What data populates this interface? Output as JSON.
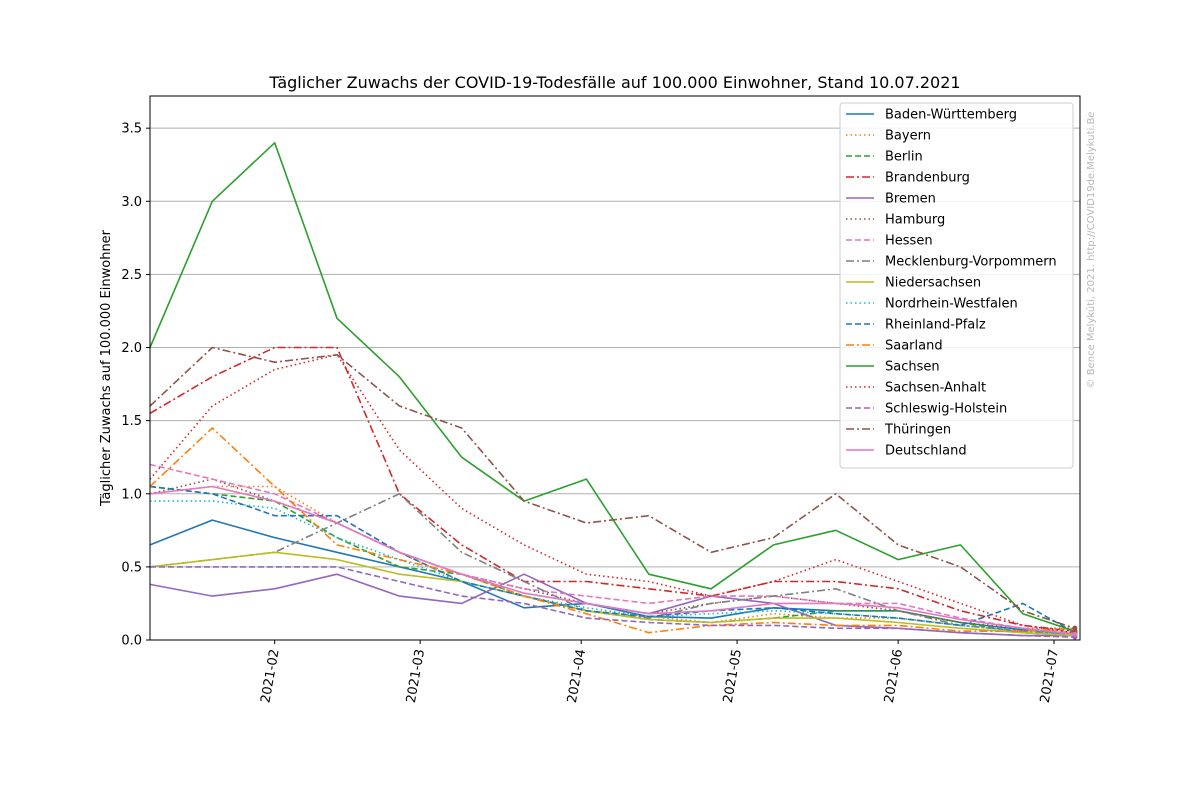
{
  "chart_data": {
    "type": "line",
    "title": "Täglicher Zuwachs der COVID-19-Todesfälle auf 100.000 Einwohner, Stand 10.07.2021",
    "xlabel": "",
    "ylabel": "Täglicher Zuwachs auf 100.000 Einwohner",
    "x_ticks": [
      "2021-02",
      "2021-03",
      "2021-04",
      "2021-05",
      "2021-06",
      "2021-07"
    ],
    "y_ticks": [
      "0.0",
      "0.5",
      "1.0",
      "1.5",
      "2.0",
      "2.5",
      "3.0",
      "3.5"
    ],
    "ylim": [
      0,
      3.72
    ],
    "xlim_days": [
      0,
      179
    ],
    "x_start_date": "2021-01-08",
    "grid": "horizontal",
    "legend_position": "top-right",
    "watermark": "© Bence Melykúti, 2021. http://COVID19de.Melykuti.Be",
    "x_days": [
      0,
      12,
      24,
      36,
      48,
      60,
      72,
      84,
      96,
      108,
      120,
      132,
      144,
      156,
      168,
      178
    ],
    "series": [
      {
        "name": "Baden-Württemberg",
        "color": "#1f77b4",
        "dash": "solid",
        "values": [
          0.65,
          0.82,
          0.7,
          0.6,
          0.5,
          0.4,
          0.22,
          0.25,
          0.16,
          0.15,
          0.22,
          0.2,
          0.2,
          0.12,
          0.07,
          0.04
        ]
      },
      {
        "name": "Bayern",
        "color": "#ff7f0e",
        "dash": "dotted",
        "values": [
          1.0,
          1.05,
          1.05,
          0.8,
          0.6,
          0.4,
          0.3,
          0.2,
          0.16,
          0.12,
          0.18,
          0.15,
          0.15,
          0.1,
          0.06,
          0.05
        ]
      },
      {
        "name": "Berlin",
        "color": "#2ca02c",
        "dash": "dashed",
        "values": [
          1.05,
          1.0,
          0.95,
          0.7,
          0.5,
          0.45,
          0.3,
          0.2,
          0.14,
          0.12,
          0.15,
          0.2,
          0.2,
          0.12,
          0.05,
          0.03
        ]
      },
      {
        "name": "Brandenburg",
        "color": "#d62728",
        "dash": "dashdot",
        "values": [
          1.55,
          1.8,
          2.0,
          2.0,
          1.0,
          0.65,
          0.4,
          0.4,
          0.35,
          0.3,
          0.4,
          0.4,
          0.35,
          0.2,
          0.1,
          0.06
        ]
      },
      {
        "name": "Bremen",
        "color": "#9467bd",
        "dash": "solid",
        "values": [
          0.38,
          0.3,
          0.35,
          0.45,
          0.3,
          0.25,
          0.45,
          0.25,
          0.18,
          0.3,
          0.25,
          0.1,
          0.08,
          0.05,
          0.03,
          0.03
        ]
      },
      {
        "name": "Hamburg",
        "color": "#8c564b",
        "dash": "dotted",
        "values": [
          1.0,
          1.1,
          0.95,
          0.8,
          0.6,
          0.45,
          0.35,
          0.25,
          0.18,
          0.25,
          0.3,
          0.25,
          0.2,
          0.12,
          0.08,
          0.08
        ]
      },
      {
        "name": "Hessen",
        "color": "#e377c2",
        "dash": "dashed",
        "values": [
          1.2,
          1.1,
          1.0,
          0.8,
          0.6,
          0.45,
          0.35,
          0.3,
          0.25,
          0.3,
          0.3,
          0.25,
          0.25,
          0.15,
          0.08,
          0.05
        ]
      },
      {
        "name": "Mecklenburg-Vorpommern",
        "color": "#7f7f7f",
        "dash": "dashdot",
        "values": [
          0.5,
          0.55,
          0.6,
          0.8,
          1.0,
          0.6,
          0.4,
          0.2,
          0.15,
          0.25,
          0.3,
          0.35,
          0.2,
          0.1,
          0.06,
          0.04
        ]
      },
      {
        "name": "Niedersachsen",
        "color": "#bcbd22",
        "dash": "solid",
        "values": [
          0.5,
          0.55,
          0.6,
          0.55,
          0.45,
          0.4,
          0.3,
          0.2,
          0.14,
          0.12,
          0.15,
          0.15,
          0.12,
          0.08,
          0.05,
          0.03
        ]
      },
      {
        "name": "Nordrhein-Westfalen",
        "color": "#17becf",
        "dash": "dotted",
        "values": [
          0.95,
          0.95,
          0.9,
          0.7,
          0.55,
          0.4,
          0.3,
          0.22,
          0.16,
          0.18,
          0.2,
          0.18,
          0.15,
          0.1,
          0.06,
          0.04
        ]
      },
      {
        "name": "Rheinland-Pfalz",
        "color": "#1f77b4",
        "dash": "dashed",
        "values": [
          1.05,
          1.0,
          0.85,
          0.85,
          0.6,
          0.4,
          0.3,
          0.2,
          0.16,
          0.2,
          0.22,
          0.18,
          0.15,
          0.1,
          0.25,
          0.05
        ]
      },
      {
        "name": "Saarland",
        "color": "#ff7f0e",
        "dash": "dashdot",
        "values": [
          1.05,
          1.45,
          1.05,
          0.65,
          0.55,
          0.45,
          0.3,
          0.18,
          0.05,
          0.1,
          0.12,
          0.1,
          0.1,
          0.06,
          0.06,
          0.08
        ]
      },
      {
        "name": "Sachsen",
        "color": "#2ca02c",
        "dash": "solid",
        "values": [
          2.0,
          3.0,
          3.4,
          2.2,
          1.8,
          1.25,
          0.95,
          1.1,
          0.45,
          0.35,
          0.65,
          0.75,
          0.55,
          0.65,
          0.18,
          0.06
        ]
      },
      {
        "name": "Sachsen-Anhalt",
        "color": "#d62728",
        "dash": "dotted",
        "values": [
          1.1,
          1.6,
          1.85,
          1.95,
          1.3,
          0.9,
          0.65,
          0.45,
          0.4,
          0.3,
          0.4,
          0.55,
          0.4,
          0.25,
          0.1,
          0.05
        ]
      },
      {
        "name": "Schleswig-Holstein",
        "color": "#9467bd",
        "dash": "dashed",
        "values": [
          0.5,
          0.5,
          0.5,
          0.5,
          0.4,
          0.3,
          0.25,
          0.15,
          0.12,
          0.1,
          0.1,
          0.08,
          0.08,
          0.05,
          0.03,
          0.02
        ]
      },
      {
        "name": "Thüringen",
        "color": "#8c564b",
        "dash": "dashdot",
        "values": [
          1.6,
          2.0,
          1.9,
          1.95,
          1.6,
          1.45,
          0.95,
          0.8,
          0.85,
          0.6,
          0.7,
          1.0,
          0.65,
          0.5,
          0.2,
          0.08
        ]
      },
      {
        "name": "Deutschland",
        "color": "#e377c2",
        "dash": "solid",
        "values": [
          1.0,
          1.05,
          0.95,
          0.8,
          0.6,
          0.45,
          0.32,
          0.25,
          0.18,
          0.2,
          0.25,
          0.25,
          0.22,
          0.14,
          0.08,
          0.04
        ]
      }
    ]
  }
}
